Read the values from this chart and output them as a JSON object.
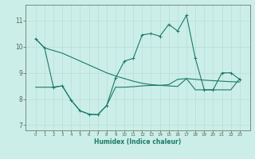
{
  "xlabel": "Humidex (Indice chaleur)",
  "x": [
    0,
    1,
    2,
    3,
    4,
    5,
    6,
    7,
    8,
    9,
    10,
    11,
    12,
    13,
    14,
    15,
    16,
    17,
    18,
    19,
    20,
    21,
    22,
    23
  ],
  "line1": [
    10.3,
    9.95,
    9.85,
    9.75,
    9.6,
    9.45,
    9.3,
    9.15,
    9.0,
    8.88,
    8.78,
    8.68,
    8.6,
    8.55,
    8.52,
    8.5,
    8.48,
    8.78,
    8.75,
    8.72,
    8.7,
    8.68,
    8.66,
    8.65
  ],
  "line2": [
    10.3,
    9.95,
    8.45,
    8.5,
    7.95,
    7.55,
    7.42,
    7.4,
    7.75,
    8.8,
    9.45,
    9.55,
    10.45,
    10.5,
    10.4,
    10.85,
    10.6,
    11.2,
    9.55,
    8.35,
    8.35,
    9.0,
    9.0,
    8.75
  ],
  "line3": [
    8.45,
    8.45,
    8.45,
    8.5,
    7.95,
    7.55,
    7.42,
    7.4,
    7.75,
    8.45,
    8.45,
    8.47,
    8.5,
    8.52,
    8.52,
    8.55,
    8.75,
    8.78,
    8.35,
    8.35,
    8.35,
    8.35,
    8.35,
    8.78
  ],
  "ylim": [
    6.8,
    11.6
  ],
  "yticks": [
    7,
    8,
    9,
    10,
    11
  ],
  "xticks": [
    0,
    1,
    2,
    3,
    4,
    5,
    6,
    7,
    8,
    9,
    10,
    11,
    12,
    13,
    14,
    15,
    16,
    17,
    18,
    19,
    20,
    21,
    22,
    23
  ],
  "line_color": "#1a7a6a",
  "bg_color": "#cceee8",
  "grid_color": "#b8ddd5",
  "axis_color": "#556655",
  "figsize": [
    3.2,
    2.0
  ],
  "dpi": 100
}
